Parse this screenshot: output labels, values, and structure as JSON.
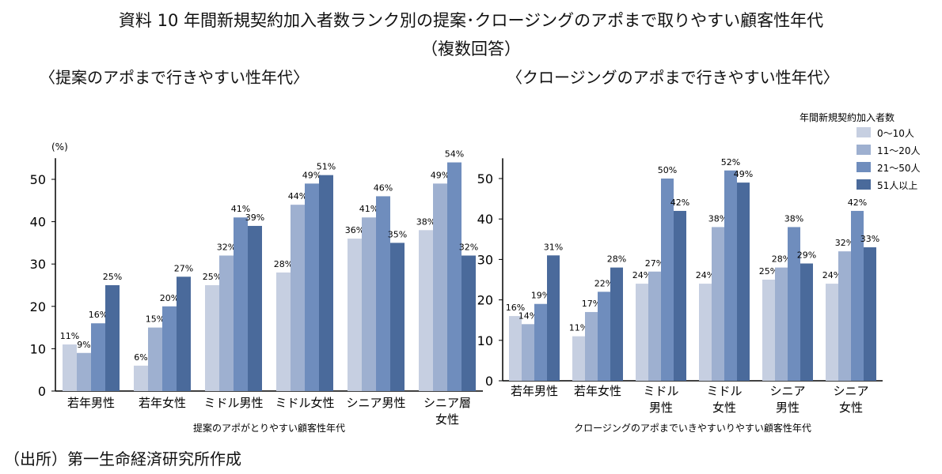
{
  "title": "資料 10  年間新規契約加入者数ランク別の提案･クロージングのアポまで取りやすい顧客性年代",
  "subtitle": "（複数回答）",
  "source": "（出所）第一生命経済研究所作成",
  "colors": [
    "#c6cfe1",
    "#9eb0d0",
    "#6f8dbd",
    "#4a6a9b"
  ],
  "chart_data": [
    {
      "type": "bar",
      "title": "〈提案のアポまで行きやすい性年代〉",
      "xlabel": "提案のアポがとりやすい顧客性年代",
      "ylabel": "(%)",
      "ylim": [
        0,
        55
      ],
      "yticks": [
        0,
        10,
        20,
        30,
        40,
        50
      ],
      "categories": [
        [
          "若年男性"
        ],
        [
          "若年女性"
        ],
        [
          "ミドル男性"
        ],
        [
          "ミドル女性"
        ],
        [
          "シニア男性"
        ],
        [
          "シニア層",
          "女性"
        ]
      ],
      "series": [
        {
          "name": "0～10人",
          "values": [
            11,
            6,
            25,
            28,
            36,
            38
          ]
        },
        {
          "name": "11～20人",
          "values": [
            9,
            15,
            32,
            44,
            41,
            49
          ]
        },
        {
          "name": "21～50人",
          "values": [
            16,
            20,
            41,
            49,
            46,
            54
          ]
        },
        {
          "name": "51人以上",
          "values": [
            25,
            27,
            39,
            51,
            35,
            32
          ]
        }
      ]
    },
    {
      "type": "bar",
      "title": "〈クロージングのアポまで行きやすい性年代〉",
      "xlabel": "クロージングのアポまでいきやすいりやすい顧客性年代",
      "ylim": [
        0,
        55
      ],
      "yticks": [
        0,
        10,
        20,
        30,
        40,
        50
      ],
      "legend_title": "年間新規契約加入者数",
      "legend_position": "top-right",
      "categories": [
        [
          "若年男性"
        ],
        [
          "若年女性"
        ],
        [
          "ミドル",
          "男性"
        ],
        [
          "ミドル",
          "女性"
        ],
        [
          "シニア",
          "男性"
        ],
        [
          "シニア",
          "女性"
        ]
      ],
      "series": [
        {
          "name": "0～10人",
          "values": [
            16,
            11,
            24,
            24,
            25,
            24
          ]
        },
        {
          "name": "11～20人",
          "values": [
            14,
            17,
            27,
            38,
            28,
            32
          ]
        },
        {
          "name": "21～50人",
          "values": [
            19,
            22,
            50,
            52,
            38,
            42
          ]
        },
        {
          "name": "51人以上",
          "values": [
            31,
            28,
            42,
            49,
            29,
            33
          ]
        }
      ]
    }
  ]
}
